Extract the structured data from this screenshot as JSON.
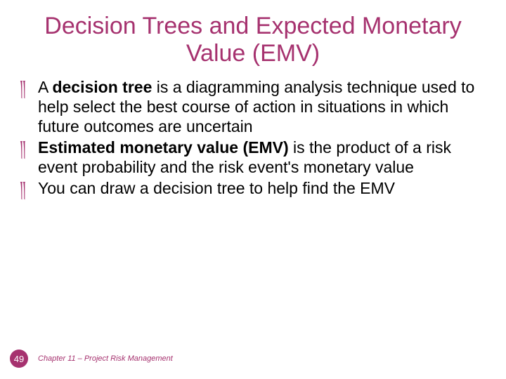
{
  "title": "Decision Trees and Expected Monetary Value (EMV)",
  "bullets": [
    {
      "glyph": "༎",
      "prefix": "A ",
      "bold": "decision tree",
      "rest": " is a diagramming analysis technique used to help select the best course of action in situations in which future outcomes are uncertain"
    },
    {
      "glyph": "༎",
      "prefix": "",
      "bold": "Estimated monetary value (EMV)",
      "rest": " is the product of a risk event probability and the risk event's monetary value"
    },
    {
      "glyph": "༎",
      "prefix": "",
      "bold": "",
      "rest": "You can draw a decision tree to help find the EMV"
    }
  ],
  "page_number": "49",
  "footer_text": "Chapter 11 – Project Risk Management",
  "colors": {
    "accent": "#a6326f",
    "text": "#000000",
    "background": "#ffffff"
  },
  "typography": {
    "title_fontsize": 34,
    "body_fontsize": 23,
    "footer_fontsize": 11,
    "pagebadge_fontsize": 13
  }
}
